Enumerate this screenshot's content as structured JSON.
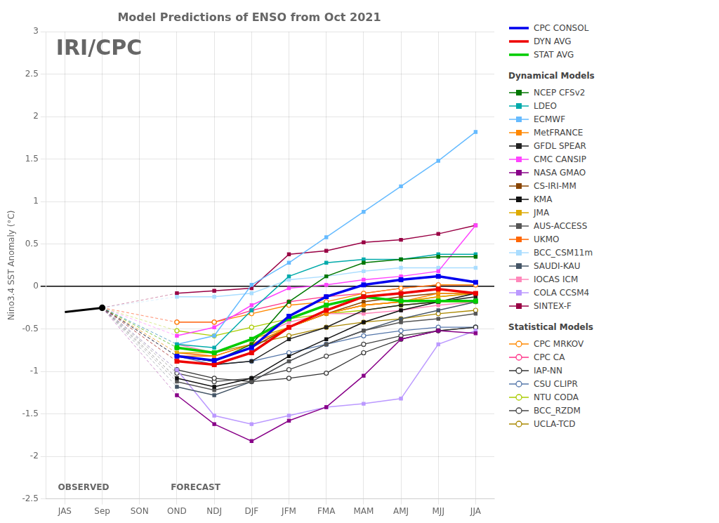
{
  "chart_data": {
    "type": "line",
    "title": "Model Predictions of ENSO from Oct 2021",
    "ylabel": "Nino3.4 SST Anomaly (°C)",
    "categories": [
      "JAS",
      "Sep",
      "SON",
      "OND",
      "NDJ",
      "DJF",
      "JFM",
      "FMA",
      "MAM",
      "AMJ",
      "MJJ",
      "JJA"
    ],
    "ylim": [
      -2.5,
      3.0
    ],
    "yticks": [
      -2.5,
      -2,
      -1.5,
      -1,
      -0.5,
      0,
      0.5,
      1,
      1.5,
      2,
      2.5,
      3
    ],
    "grid": true,
    "annotations": [
      "OBSERVED",
      "FORECAST",
      "IRI/CPC"
    ],
    "series": [
      {
        "color": "#000000",
        "values": [
          -0.3,
          -0.25,
          null,
          null,
          null,
          null,
          null,
          null,
          null,
          null,
          null,
          null
        ]
      },
      {
        "name": "CPC CONSOL",
        "color": "#0000EE",
        "marker": "square",
        "values": [
          null,
          null,
          null,
          -0.82,
          -0.87,
          -0.72,
          -0.35,
          -0.12,
          0.02,
          0.08,
          0.12,
          0.05
        ]
      },
      {
        "name": "DYN AVG",
        "color": "#EE0000",
        "marker": "square",
        "values": [
          null,
          null,
          null,
          -0.88,
          -0.92,
          -0.78,
          -0.48,
          -0.28,
          -0.12,
          -0.08,
          -0.03,
          -0.08
        ]
      },
      {
        "name": "STAT AVG",
        "color": "#00CC00",
        "marker": "square",
        "values": [
          null,
          null,
          null,
          -0.72,
          -0.78,
          -0.62,
          -0.38,
          -0.22,
          -0.12,
          -0.17,
          -0.17,
          -0.17
        ]
      },
      {
        "name": "NCEP CFSv2",
        "group": "Dynamical Models",
        "color": "#007700",
        "marker": "square",
        "values": [
          null,
          null,
          null,
          -0.82,
          -0.88,
          -0.68,
          -0.18,
          0.12,
          0.28,
          0.32,
          0.35,
          0.35
        ]
      },
      {
        "name": "LDEO",
        "group": "Dynamical Models",
        "color": "#00AAAA",
        "marker": "square",
        "values": [
          null,
          null,
          null,
          -0.68,
          -0.72,
          -0.28,
          0.12,
          0.28,
          0.32,
          0.32,
          0.38,
          0.38
        ]
      },
      {
        "name": "ECMWF",
        "group": "Dynamical Models",
        "color": "#66BBFF",
        "marker": "square",
        "values": [
          null,
          null,
          null,
          -0.68,
          -0.58,
          0.02,
          0.28,
          0.58,
          0.88,
          1.18,
          1.48,
          1.82
        ]
      },
      {
        "name": "MetFRANCE",
        "group": "Dynamical Models",
        "color": "#FF8800",
        "marker": "square",
        "values": [
          null,
          null,
          null,
          -0.82,
          -0.82,
          -0.68,
          -0.48,
          -0.32,
          -0.22,
          -0.18,
          -0.08,
          -0.08
        ]
      },
      {
        "name": "GFDL SPEAR",
        "group": "Dynamical Models",
        "color": "#222222",
        "marker": "square",
        "values": [
          null,
          null,
          null,
          -0.88,
          -0.92,
          -0.88,
          -0.62,
          -0.48,
          -0.28,
          -0.22,
          -0.18,
          -0.12
        ]
      },
      {
        "name": "CMC CANSIP",
        "group": "Dynamical Models",
        "color": "#FF44FF",
        "marker": "square",
        "values": [
          null,
          null,
          null,
          -0.58,
          -0.48,
          -0.22,
          -0.02,
          0.02,
          0.08,
          0.12,
          0.18,
          0.72
        ]
      },
      {
        "name": "NASA GMAO",
        "group": "Dynamical Models",
        "color": "#880088",
        "marker": "square",
        "values": [
          null,
          null,
          null,
          -1.28,
          -1.62,
          -1.82,
          -1.58,
          -1.42,
          -1.05,
          -0.62,
          -0.52,
          -0.55
        ]
      },
      {
        "name": "CS-IRI-MM",
        "group": "Dynamical Models",
        "color": "#884400",
        "marker": "square",
        "values": [
          null,
          null,
          null,
          -0.82,
          -0.88,
          -0.72,
          -0.48,
          -0.32,
          -0.18,
          -0.12,
          -0.08,
          -0.08
        ]
      },
      {
        "name": "KMA",
        "group": "Dynamical Models",
        "color": "#111111",
        "marker": "square",
        "values": [
          null,
          null,
          null,
          -1.08,
          -1.18,
          -1.08,
          -0.82,
          -0.62,
          -0.42,
          -0.28,
          -0.18,
          -0.08
        ]
      },
      {
        "name": "JMA",
        "group": "Dynamical Models",
        "color": "#DDAA00",
        "marker": "square",
        "values": [
          null,
          null,
          null,
          -0.78,
          -0.78,
          -0.62,
          -0.48,
          -0.32,
          -0.22,
          -0.18,
          -0.12,
          -0.08
        ]
      },
      {
        "name": "AUS-ACCESS",
        "group": "Dynamical Models",
        "color": "#555555",
        "marker": "square",
        "values": [
          null,
          null,
          null,
          -1.12,
          -1.22,
          -1.12,
          -0.88,
          -0.68,
          -0.52,
          -0.42,
          -0.38,
          -0.32
        ]
      },
      {
        "name": "UKMO",
        "group": "Dynamical Models",
        "color": "#FF6600",
        "marker": "square",
        "values": [
          null,
          null,
          null,
          -0.78,
          -0.82,
          -0.68,
          -0.48,
          -0.32,
          -0.22,
          -0.18,
          -0.12,
          -0.08
        ]
      },
      {
        "name": "BCC_CSM11m",
        "group": "Dynamical Models",
        "color": "#AADDFF",
        "marker": "square",
        "values": [
          null,
          null,
          null,
          -0.12,
          -0.12,
          -0.08,
          0.08,
          0.12,
          0.18,
          0.22,
          0.22,
          0.22
        ]
      },
      {
        "name": "SAUDI-KAU",
        "group": "Dynamical Models",
        "color": "#445566",
        "marker": "square",
        "values": [
          null,
          null,
          null,
          -1.18,
          -1.28,
          -1.12,
          -0.88,
          -0.68,
          -0.52,
          -0.38,
          -0.28,
          -0.18
        ]
      },
      {
        "name": "IOCAS ICM",
        "group": "Dynamical Models",
        "color": "#FF88BB",
        "marker": "square",
        "values": [
          null,
          null,
          null,
          -0.68,
          -0.78,
          -0.62,
          -0.42,
          -0.32,
          -0.32,
          -0.28,
          -0.22,
          -0.18
        ]
      },
      {
        "name": "COLA CCSM4",
        "group": "Dynamical Models",
        "color": "#BB99FF",
        "marker": "square",
        "values": [
          null,
          null,
          null,
          -0.98,
          -1.52,
          -1.62,
          -1.52,
          -1.42,
          -1.38,
          -1.32,
          -0.68,
          -0.52
        ]
      },
      {
        "name": "SINTEX-F",
        "group": "Dynamical Models",
        "color": "#990044",
        "marker": "square",
        "values": [
          null,
          null,
          null,
          -0.08,
          -0.05,
          -0.02,
          0.38,
          0.42,
          0.52,
          0.55,
          0.62,
          0.72
        ]
      },
      {
        "name": "CPC MRKOV",
        "group": "Statistical Models",
        "color": "#FF8800",
        "marker": "circle",
        "values": [
          null,
          null,
          null,
          -0.42,
          -0.42,
          -0.32,
          -0.22,
          -0.18,
          -0.08,
          -0.02,
          0.02,
          0.02
        ]
      },
      {
        "name": "CPC CA",
        "group": "Statistical Models",
        "color": "#FF3388",
        "marker": "circle",
        "values": [
          null,
          null,
          null,
          -0.42,
          -0.42,
          -0.28,
          -0.18,
          -0.12,
          -0.08,
          -0.02,
          0.02,
          0.02
        ]
      },
      {
        "name": "IAP-NN",
        "group": "Statistical Models",
        "color": "#333333",
        "marker": "circle",
        "values": [
          null,
          null,
          null,
          -0.98,
          -1.08,
          -1.12,
          -1.08,
          -1.02,
          -0.78,
          -0.62,
          -0.52,
          -0.48
        ]
      },
      {
        "name": "CSU CLIPR",
        "group": "Statistical Models",
        "color": "#5577AA",
        "marker": "circle",
        "values": [
          null,
          null,
          null,
          -0.82,
          -0.92,
          -0.88,
          -0.78,
          -0.68,
          -0.58,
          -0.52,
          -0.48,
          -0.48
        ]
      },
      {
        "name": "NTU CODA",
        "group": "Statistical Models",
        "color": "#AACC00",
        "marker": "circle",
        "values": [
          null,
          null,
          null,
          -0.52,
          -0.58,
          -0.48,
          -0.38,
          -0.32,
          -0.28,
          -0.22,
          -0.18,
          -0.18
        ]
      },
      {
        "name": "BCC_RZDM",
        "group": "Statistical Models",
        "color": "#444444",
        "marker": "circle",
        "values": [
          null,
          null,
          null,
          -1.02,
          -1.12,
          -1.08,
          -0.98,
          -0.82,
          -0.68,
          -0.58,
          -0.52,
          -0.48
        ]
      },
      {
        "name": "UCLA-TCD",
        "group": "Statistical Models",
        "color": "#AA8800",
        "marker": "circle",
        "values": [
          null,
          null,
          null,
          -0.72,
          -0.78,
          -0.68,
          -0.58,
          -0.48,
          -0.42,
          -0.38,
          -0.32,
          -0.28
        ]
      }
    ]
  }
}
